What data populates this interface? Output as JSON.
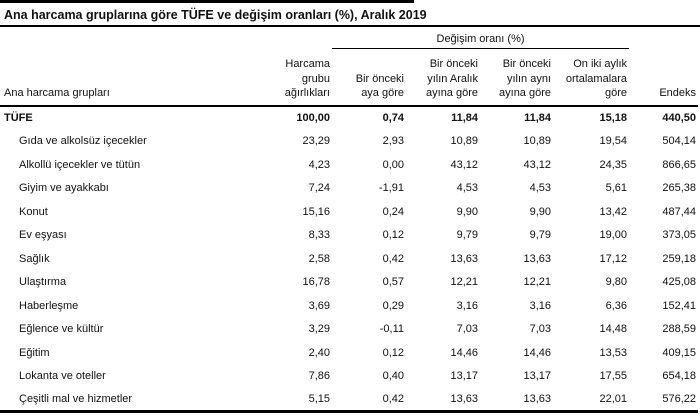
{
  "page": {
    "title": "Ana harcama gruplarına göre TÜFE ve değişim oranları (%), Aralık 2019"
  },
  "table": {
    "group_header": "Değişim oranı (%)",
    "headers": {
      "row_label": "Ana harcama grupları",
      "weight": "Harcama\ngrubu\nağırlıkları",
      "monthly": "Bir önceki\naya göre",
      "vs_december": "Bir önceki\nyılın Aralık\nayına göre",
      "vs_same_month": "Bir önceki\nyılın aynı\nayına göre",
      "twelve_month_avg": "On iki aylık\nortalamalara\ngöre",
      "index": "Endeks"
    },
    "rows": [
      {
        "label": "TÜFE",
        "bold": true,
        "indent": false,
        "values": [
          "100,00",
          "0,74",
          "11,84",
          "11,84",
          "15,18",
          "440,50"
        ]
      },
      {
        "label": "Gıda ve alkolsüz içecekler",
        "bold": false,
        "indent": true,
        "values": [
          "23,29",
          "2,93",
          "10,89",
          "10,89",
          "19,54",
          "504,14"
        ]
      },
      {
        "label": "Alkollü içecekler ve tütün",
        "bold": false,
        "indent": true,
        "values": [
          "4,23",
          "0,00",
          "43,12",
          "43,12",
          "24,35",
          "866,65"
        ]
      },
      {
        "label": "Giyim ve ayakkabı",
        "bold": false,
        "indent": true,
        "values": [
          "7,24",
          "-1,91",
          "4,53",
          "4,53",
          "5,61",
          "265,38"
        ]
      },
      {
        "label": "Konut",
        "bold": false,
        "indent": true,
        "values": [
          "15,16",
          "0,24",
          "9,90",
          "9,90",
          "13,42",
          "487,44"
        ]
      },
      {
        "label": "Ev eşyası",
        "bold": false,
        "indent": true,
        "values": [
          "8,33",
          "0,12",
          "9,79",
          "9,79",
          "19,00",
          "373,05"
        ]
      },
      {
        "label": "Sağlık",
        "bold": false,
        "indent": true,
        "values": [
          "2,58",
          "0,42",
          "13,63",
          "13,63",
          "17,12",
          "259,18"
        ]
      },
      {
        "label": "Ulaştırma",
        "bold": false,
        "indent": true,
        "values": [
          "16,78",
          "0,57",
          "12,21",
          "12,21",
          "9,80",
          "425,08"
        ]
      },
      {
        "label": "Haberleşme",
        "bold": false,
        "indent": true,
        "values": [
          "3,69",
          "0,29",
          "3,16",
          "3,16",
          "6,36",
          "152,41"
        ]
      },
      {
        "label": "Eğlence ve kültür",
        "bold": false,
        "indent": true,
        "values": [
          "3,29",
          "-0,11",
          "7,03",
          "7,03",
          "14,48",
          "288,59"
        ]
      },
      {
        "label": "Eğitim",
        "bold": false,
        "indent": true,
        "values": [
          "2,40",
          "0,12",
          "14,46",
          "14,46",
          "13,53",
          "409,15"
        ]
      },
      {
        "label": "Lokanta ve oteller",
        "bold": false,
        "indent": true,
        "values": [
          "7,86",
          "0,40",
          "13,17",
          "13,17",
          "17,55",
          "654,18"
        ]
      },
      {
        "label": "Çeşitli mal ve hizmetler",
        "bold": false,
        "indent": true,
        "values": [
          "5,15",
          "0,42",
          "13,63",
          "13,63",
          "22,01",
          "576,22"
        ]
      }
    ]
  }
}
